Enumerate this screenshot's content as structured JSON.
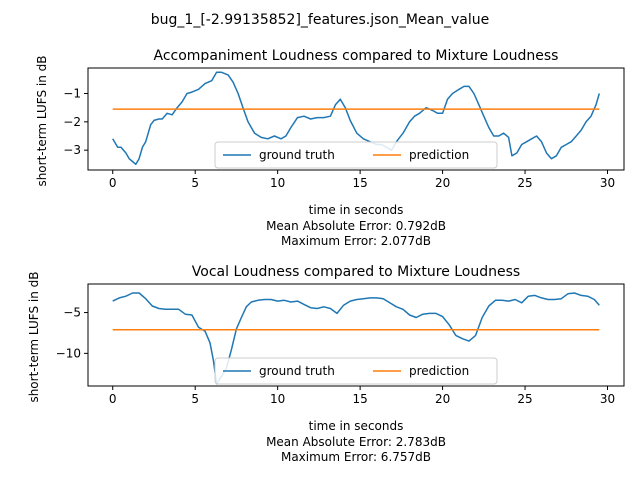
{
  "figure_title": "bug_1_[-2.99135852]_features.json_Mean_value",
  "colors": {
    "ground_truth": "#1f77b4",
    "prediction": "#ff7f0e"
  },
  "chart_data": [
    {
      "type": "line",
      "title": "Accompaniment Loudness compared to Mixture Loudness",
      "xlabel": "time in seconds",
      "ylabel": "short-term LUFS in dB",
      "xlim": [
        -1.5,
        31
      ],
      "ylim": [
        -3.7,
        -0.1
      ],
      "xticks": [
        0,
        5,
        10,
        15,
        20,
        25,
        30
      ],
      "yticks": [
        -3,
        -2,
        -1
      ],
      "notes": [
        "Mean Absolute Error: 0.792dB",
        "Maximum Error: 2.077dB"
      ],
      "legend": {
        "location": "lower center",
        "columns": 2
      },
      "series": [
        {
          "name": "ground truth",
          "x": [
            0,
            0.3,
            0.5,
            0.8,
            1.0,
            1.2,
            1.4,
            1.6,
            1.8,
            2.0,
            2.3,
            2.5,
            2.8,
            3.0,
            3.3,
            3.6,
            3.9,
            4.2,
            4.5,
            4.8,
            5.2,
            5.6,
            6.0,
            6.3,
            6.6,
            7.0,
            7.3,
            7.6,
            7.9,
            8.2,
            8.6,
            9.0,
            9.4,
            9.8,
            10.2,
            10.5,
            10.8,
            11.2,
            11.6,
            12.0,
            12.4,
            12.8,
            13.2,
            13.5,
            13.8,
            14.1,
            14.4,
            14.8,
            15.2,
            15.6,
            16.0,
            16.3,
            16.6,
            16.9,
            17.2,
            17.6,
            18.0,
            18.3,
            18.6,
            19.0,
            19.4,
            19.7,
            20.0,
            20.3,
            20.6,
            21.0,
            21.3,
            21.6,
            21.9,
            22.2,
            22.5,
            22.8,
            23.1,
            23.4,
            23.7,
            24.0,
            24.2,
            24.5,
            24.8,
            25.1,
            25.4,
            25.7,
            26.0,
            26.3,
            26.6,
            26.9,
            27.2,
            27.5,
            27.8,
            28.1,
            28.4,
            28.7,
            29.0,
            29.3,
            29.5
          ],
          "values": [
            -2.6,
            -2.9,
            -2.9,
            -3.1,
            -3.3,
            -3.4,
            -3.5,
            -3.3,
            -2.9,
            -2.7,
            -2.1,
            -1.95,
            -1.9,
            -1.9,
            -1.7,
            -1.75,
            -1.5,
            -1.3,
            -1.0,
            -0.95,
            -0.85,
            -0.65,
            -0.55,
            -0.25,
            -0.25,
            -0.35,
            -0.6,
            -1.0,
            -1.5,
            -2.0,
            -2.4,
            -2.55,
            -2.6,
            -2.5,
            -2.6,
            -2.5,
            -2.2,
            -1.85,
            -1.8,
            -1.9,
            -1.85,
            -1.85,
            -1.8,
            -1.4,
            -1.2,
            -1.5,
            -1.95,
            -2.4,
            -2.6,
            -2.7,
            -2.8,
            -2.8,
            -2.9,
            -3.0,
            -2.7,
            -2.4,
            -2.0,
            -1.8,
            -1.7,
            -1.5,
            -1.6,
            -1.7,
            -1.7,
            -1.2,
            -1.0,
            -0.85,
            -0.75,
            -0.75,
            -1.0,
            -1.4,
            -1.8,
            -2.2,
            -2.5,
            -2.5,
            -2.4,
            -2.55,
            -3.2,
            -3.1,
            -2.8,
            -2.7,
            -2.6,
            -2.5,
            -2.7,
            -3.1,
            -3.3,
            -3.2,
            -2.9,
            -2.8,
            -2.7,
            -2.5,
            -2.3,
            -2.0,
            -1.8,
            -1.4,
            -1.0
          ]
        },
        {
          "name": "prediction",
          "x": [
            0,
            29.5
          ],
          "values": [
            -1.55,
            -1.55
          ]
        }
      ]
    },
    {
      "type": "line",
      "title": "Vocal Loudness compared to Mixture Loudness",
      "xlabel": "time in seconds",
      "ylabel": "short-term LUFS in dB",
      "xlim": [
        -1.5,
        31
      ],
      "ylim": [
        -14,
        -1.5
      ],
      "xticks": [
        0,
        5,
        10,
        15,
        20,
        25,
        30
      ],
      "yticks": [
        -10,
        -5
      ],
      "notes": [
        "Mean Absolute Error: 2.783dB",
        "Maximum Error: 6.757dB"
      ],
      "legend": {
        "location": "lower center",
        "columns": 2
      },
      "series": [
        {
          "name": "ground truth",
          "x": [
            0,
            0.4,
            0.8,
            1.2,
            1.6,
            2.0,
            2.4,
            2.8,
            3.2,
            3.6,
            4.0,
            4.4,
            4.8,
            5.2,
            5.6,
            5.9,
            6.1,
            6.3,
            6.6,
            6.9,
            7.2,
            7.5,
            7.8,
            8.1,
            8.4,
            8.8,
            9.2,
            9.6,
            10.0,
            10.4,
            10.8,
            11.2,
            11.6,
            12.0,
            12.4,
            12.8,
            13.2,
            13.6,
            14.0,
            14.4,
            14.8,
            15.2,
            15.6,
            16.0,
            16.4,
            16.8,
            17.2,
            17.6,
            18.0,
            18.4,
            18.8,
            19.2,
            19.6,
            20.0,
            20.4,
            20.8,
            21.2,
            21.6,
            22.0,
            22.4,
            22.8,
            23.2,
            23.6,
            24.0,
            24.4,
            24.8,
            25.2,
            25.6,
            26.0,
            26.4,
            26.8,
            27.2,
            27.6,
            28.0,
            28.4,
            28.8,
            29.2,
            29.5
          ],
          "values": [
            -3.6,
            -3.2,
            -3.0,
            -2.6,
            -2.6,
            -3.3,
            -4.2,
            -4.5,
            -4.6,
            -4.6,
            -4.6,
            -5.2,
            -5.3,
            -6.8,
            -7.3,
            -8.7,
            -10.8,
            -13.7,
            -12.8,
            -11.8,
            -9.5,
            -7.0,
            -5.6,
            -4.3,
            -3.7,
            -3.5,
            -3.4,
            -3.4,
            -3.6,
            -3.5,
            -3.7,
            -3.6,
            -4.0,
            -4.4,
            -4.5,
            -4.3,
            -4.5,
            -5.1,
            -4.1,
            -3.6,
            -3.4,
            -3.3,
            -3.2,
            -3.2,
            -3.3,
            -3.8,
            -4.3,
            -4.6,
            -5.3,
            -5.6,
            -5.2,
            -5.1,
            -5.1,
            -5.5,
            -6.5,
            -7.8,
            -8.2,
            -8.5,
            -7.8,
            -5.6,
            -4.2,
            -3.5,
            -3.5,
            -3.6,
            -3.4,
            -3.8,
            -3.0,
            -2.9,
            -3.2,
            -3.4,
            -3.4,
            -3.3,
            -2.7,
            -2.6,
            -2.9,
            -3.0,
            -3.4,
            -4.1
          ]
        },
        {
          "name": "prediction",
          "x": [
            0,
            29.5
          ],
          "values": [
            -7.1,
            -7.1
          ]
        }
      ]
    }
  ]
}
